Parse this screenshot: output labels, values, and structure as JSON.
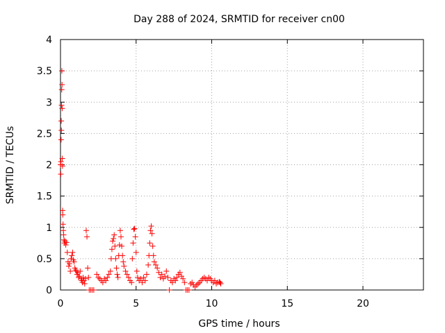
{
  "chart_data": {
    "type": "scatter",
    "title": "Day 288 of 2024, SRMTID for receiver cn00",
    "xlabel": "GPS time / hours",
    "ylabel": "SRMTID / TECUs",
    "xlim": [
      0,
      24
    ],
    "ylim": [
      0,
      4
    ],
    "xticks": [
      0,
      5,
      10,
      15,
      20
    ],
    "yticks": [
      0,
      0.5,
      1,
      1.5,
      2,
      2.5,
      3,
      3.5,
      4
    ],
    "xtick_labels": [
      "0",
      "5",
      "10",
      "15",
      "20"
    ],
    "ytick_labels": [
      "0",
      "0.5",
      "1",
      "1.5",
      "2",
      "2.5",
      "3",
      "3.5",
      "4"
    ],
    "grid": true,
    "marker": "plus",
    "color": "#ff0000",
    "series": [
      {
        "points": [
          [
            0.0,
            2.0
          ],
          [
            0.02,
            1.85
          ],
          [
            0.03,
            2.05
          ],
          [
            0.04,
            2.4
          ],
          [
            0.05,
            2.7
          ],
          [
            0.06,
            2.55
          ],
          [
            0.07,
            2.95
          ],
          [
            0.08,
            3.2
          ],
          [
            0.09,
            3.5
          ],
          [
            0.1,
            3.28
          ],
          [
            0.11,
            2.9
          ],
          [
            0.12,
            2.1
          ],
          [
            0.13,
            1.98
          ],
          [
            0.14,
            1.27
          ],
          [
            0.15,
            1.2
          ],
          [
            0.17,
            1.05
          ],
          [
            0.19,
            0.95
          ],
          [
            0.21,
            0.88
          ],
          [
            0.23,
            0.8
          ],
          [
            0.26,
            0.75
          ],
          [
            0.3,
            0.78
          ],
          [
            0.35,
            0.72
          ],
          [
            0.4,
            0.76
          ],
          [
            0.45,
            0.6
          ],
          [
            0.5,
            0.45
          ],
          [
            0.55,
            0.38
          ],
          [
            0.6,
            0.42
          ],
          [
            0.65,
            0.3
          ],
          [
            0.7,
            0.5
          ],
          [
            0.75,
            0.55
          ],
          [
            0.8,
            0.6
          ],
          [
            0.85,
            0.48
          ],
          [
            0.9,
            0.45
          ],
          [
            0.95,
            0.35
          ],
          [
            1.0,
            0.32
          ],
          [
            1.05,
            0.3
          ],
          [
            1.1,
            0.25
          ],
          [
            1.15,
            0.28
          ],
          [
            1.2,
            0.2
          ],
          [
            1.25,
            0.22
          ],
          [
            1.3,
            0.3
          ],
          [
            1.35,
            0.18
          ],
          [
            1.4,
            0.15
          ],
          [
            1.45,
            0.12
          ],
          [
            1.5,
            0.2
          ],
          [
            1.55,
            0.15
          ],
          [
            1.6,
            0.1
          ],
          [
            1.65,
            0.18
          ],
          [
            1.7,
            0.95
          ],
          [
            1.75,
            0.85
          ],
          [
            1.8,
            0.35
          ],
          [
            1.85,
            0.2
          ],
          [
            1.9,
            0.0
          ],
          [
            2.0,
            0.0
          ],
          [
            2.1,
            0.0
          ],
          [
            2.2,
            0.0
          ],
          [
            2.4,
            0.25
          ],
          [
            2.5,
            0.2
          ],
          [
            2.6,
            0.18
          ],
          [
            2.7,
            0.15
          ],
          [
            2.8,
            0.12
          ],
          [
            2.9,
            0.18
          ],
          [
            3.0,
            0.15
          ],
          [
            3.1,
            0.2
          ],
          [
            3.2,
            0.25
          ],
          [
            3.3,
            0.3
          ],
          [
            3.35,
            0.5
          ],
          [
            3.4,
            0.65
          ],
          [
            3.45,
            0.78
          ],
          [
            3.5,
            0.82
          ],
          [
            3.55,
            0.88
          ],
          [
            3.6,
            0.7
          ],
          [
            3.65,
            0.5
          ],
          [
            3.7,
            0.35
          ],
          [
            3.75,
            0.25
          ],
          [
            3.8,
            0.2
          ],
          [
            3.85,
            0.55
          ],
          [
            3.9,
            0.72
          ],
          [
            3.95,
            0.95
          ],
          [
            4.0,
            0.85
          ],
          [
            4.05,
            0.7
          ],
          [
            4.1,
            0.55
          ],
          [
            4.15,
            0.45
          ],
          [
            4.2,
            0.38
          ],
          [
            4.3,
            0.3
          ],
          [
            4.4,
            0.25
          ],
          [
            4.5,
            0.2
          ],
          [
            4.6,
            0.15
          ],
          [
            4.7,
            0.12
          ],
          [
            4.75,
            0.5
          ],
          [
            4.8,
            0.75
          ],
          [
            4.85,
            0.97
          ],
          [
            4.9,
            0.98
          ],
          [
            4.95,
            0.85
          ],
          [
            5.0,
            0.6
          ],
          [
            5.05,
            0.3
          ],
          [
            5.1,
            0.2
          ],
          [
            5.2,
            0.15
          ],
          [
            5.3,
            0.18
          ],
          [
            5.4,
            0.12
          ],
          [
            5.5,
            0.2
          ],
          [
            5.6,
            0.15
          ],
          [
            5.7,
            0.25
          ],
          [
            5.8,
            0.4
          ],
          [
            5.85,
            0.55
          ],
          [
            5.9,
            0.75
          ],
          [
            5.95,
            0.95
          ],
          [
            6.0,
            1.02
          ],
          [
            6.05,
            0.9
          ],
          [
            6.1,
            0.7
          ],
          [
            6.15,
            0.55
          ],
          [
            6.2,
            0.45
          ],
          [
            6.3,
            0.4
          ],
          [
            6.4,
            0.35
          ],
          [
            6.5,
            0.28
          ],
          [
            6.6,
            0.2
          ],
          [
            6.7,
            0.25
          ],
          [
            6.8,
            0.18
          ],
          [
            6.9,
            0.22
          ],
          [
            7.0,
            0.3
          ],
          [
            7.1,
            0.2
          ],
          [
            7.2,
            0.0
          ],
          [
            7.3,
            0.15
          ],
          [
            7.4,
            0.12
          ],
          [
            7.5,
            0.18
          ],
          [
            7.6,
            0.15
          ],
          [
            7.7,
            0.2
          ],
          [
            7.8,
            0.25
          ],
          [
            7.9,
            0.28
          ],
          [
            8.0,
            0.22
          ],
          [
            8.1,
            0.18
          ],
          [
            8.2,
            0.12
          ],
          [
            8.3,
            0.0
          ],
          [
            8.4,
            0.0
          ],
          [
            8.5,
            0.0
          ],
          [
            8.6,
            0.1
          ],
          [
            8.7,
            0.12
          ],
          [
            8.8,
            0.08
          ],
          [
            8.9,
            0.05
          ],
          [
            9.0,
            0.08
          ],
          [
            9.1,
            0.1
          ],
          [
            9.2,
            0.12
          ],
          [
            9.3,
            0.15
          ],
          [
            9.4,
            0.18
          ],
          [
            9.5,
            0.2
          ],
          [
            9.6,
            0.18
          ],
          [
            9.7,
            0.15
          ],
          [
            9.8,
            0.2
          ],
          [
            9.9,
            0.18
          ],
          [
            10.0,
            0.15
          ],
          [
            10.1,
            0.12
          ],
          [
            10.2,
            0.15
          ],
          [
            10.3,
            0.1
          ],
          [
            10.4,
            0.12
          ],
          [
            10.5,
            0.13
          ],
          [
            10.55,
            0.12
          ],
          [
            10.6,
            0.1
          ]
        ]
      }
    ]
  }
}
